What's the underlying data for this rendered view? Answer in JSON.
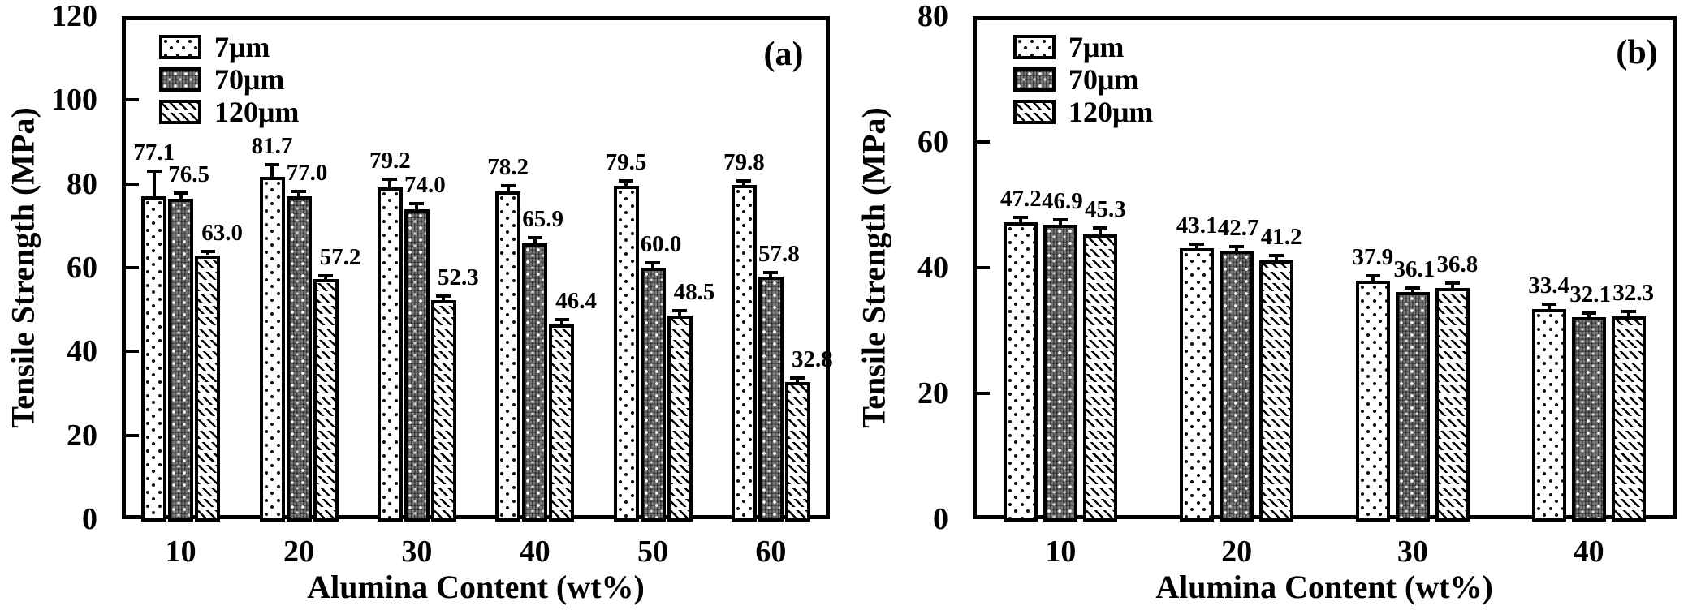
{
  "chart_data": [
    {
      "type": "bar",
      "panel_label": "(a)",
      "xlabel": "Alumina Content (wt%)",
      "ylabel": "Tensile Strength (MPa)",
      "ylim": [
        0,
        120
      ],
      "yticks": [
        0,
        20,
        40,
        60,
        80,
        100,
        120
      ],
      "grid": false,
      "legend_position": "top-left",
      "background_color": "#ffffff",
      "ink_color": "#000000",
      "categories": [
        "10",
        "20",
        "30",
        "40",
        "50",
        "60"
      ],
      "series": [
        {
          "name": "7μm",
          "pattern": "sparse-dots",
          "values": [
            77.1,
            81.7,
            79.2,
            78.2,
            79.5,
            79.8
          ],
          "errors": [
            5.5,
            2.4,
            1.6,
            1.0,
            0.8,
            0.6
          ],
          "data_labels": [
            "77.1",
            "81.7",
            "79.2",
            "78.2",
            "79.5",
            "79.8"
          ]
        },
        {
          "name": "70μm",
          "pattern": "dense-dots",
          "values": [
            76.5,
            77.0,
            74.0,
            65.9,
            60.0,
            57.8
          ],
          "errors": [
            0.9,
            0.9,
            0.9,
            0.9,
            0.8,
            0.7
          ],
          "data_labels": [
            "76.5",
            "77.0",
            "74.0",
            "65.9",
            "60.0",
            "57.8"
          ]
        },
        {
          "name": "120μm",
          "pattern": "diagonal-hatch",
          "values": [
            63.0,
            57.2,
            52.3,
            46.4,
            48.5,
            32.8
          ],
          "errors": [
            0.5,
            0.5,
            0.5,
            0.9,
            0.8,
            0.5
          ],
          "data_labels": [
            "63.0",
            "57.2",
            "52.3",
            "46.4",
            "48.5",
            "32.8"
          ]
        }
      ]
    },
    {
      "type": "bar",
      "panel_label": "(b)",
      "xlabel": "Alumina Content (wt%)",
      "ylabel": "Tensile Strength (MPa)",
      "ylim": [
        0,
        80
      ],
      "yticks": [
        0,
        20,
        40,
        60,
        80
      ],
      "grid": false,
      "legend_position": "top-left",
      "background_color": "#ffffff",
      "ink_color": "#000000",
      "categories": [
        "10",
        "20",
        "30",
        "40"
      ],
      "series": [
        {
          "name": "7μm",
          "pattern": "sparse-dots",
          "values": [
            47.2,
            43.1,
            37.9,
            33.4
          ],
          "errors": [
            0.5,
            0.4,
            0.5,
            0.6
          ],
          "data_labels": [
            "47.2",
            "43.1",
            "37.9",
            "33.4"
          ]
        },
        {
          "name": "70μm",
          "pattern": "dense-dots",
          "values": [
            46.9,
            42.7,
            36.1,
            32.1
          ],
          "errors": [
            0.4,
            0.4,
            0.4,
            0.4
          ],
          "data_labels": [
            "46.9",
            "42.7",
            "36.1",
            "32.1"
          ]
        },
        {
          "name": "120μm",
          "pattern": "diagonal-hatch",
          "values": [
            45.3,
            41.2,
            36.8,
            32.3
          ],
          "errors": [
            0.8,
            0.5,
            0.5,
            0.5
          ],
          "data_labels": [
            "45.3",
            "41.2",
            "36.8",
            "32.3"
          ]
        }
      ]
    }
  ]
}
